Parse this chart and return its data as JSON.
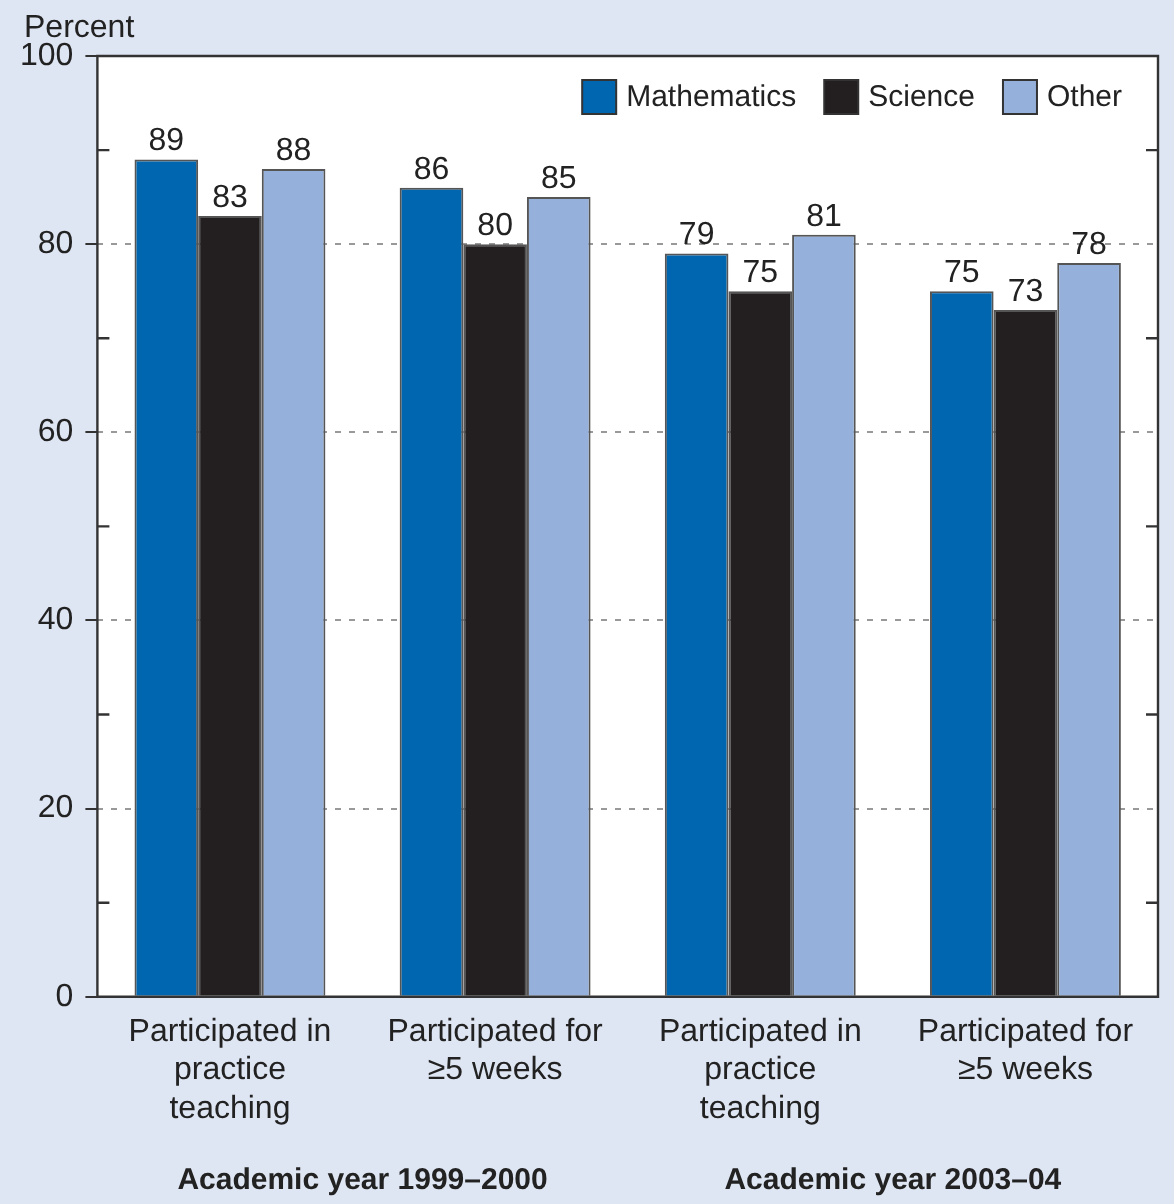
{
  "chart_data": {
    "type": "bar",
    "ylabel": "Percent",
    "categories": [
      "Participated in practice teaching",
      "Participated for ≥5 weeks",
      "Participated in practice teaching",
      "Participated for ≥5 weeks"
    ],
    "series": [
      {
        "name": "Mathematics",
        "color": "#0066b0",
        "values": [
          89,
          86,
          79,
          75
        ]
      },
      {
        "name": "Science",
        "color": "#231f20",
        "values": [
          83,
          80,
          75,
          73
        ]
      },
      {
        "name": "Other",
        "color": "#95b0da",
        "values": [
          88,
          85,
          81,
          78
        ]
      }
    ],
    "ylim": [
      0,
      100
    ],
    "yticks": [
      0,
      20,
      40,
      60,
      80,
      100
    ],
    "grid": "y",
    "legend": "top right",
    "data_labels": true,
    "annotations": [
      "Academic year 1999–2000",
      "Academic year 2003–04"
    ]
  }
}
